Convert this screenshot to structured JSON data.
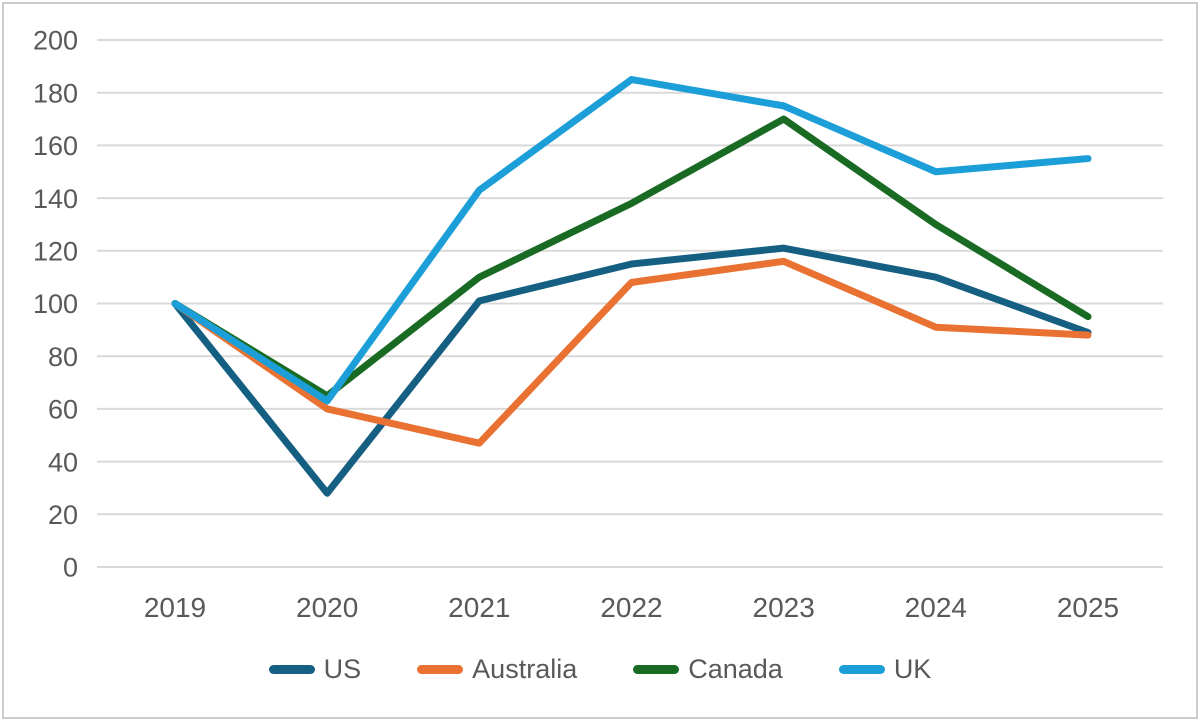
{
  "chart_data": {
    "type": "line",
    "title": "",
    "xlabel": "",
    "ylabel": "",
    "categories": [
      "2019",
      "2020",
      "2021",
      "2022",
      "2023",
      "2024",
      "2025"
    ],
    "series": [
      {
        "name": "US",
        "color": "#156082",
        "values": [
          100,
          28,
          101,
          115,
          121,
          110,
          89
        ]
      },
      {
        "name": "Australia",
        "color": "#E97132",
        "values": [
          100,
          60,
          47,
          108,
          116,
          91,
          88
        ]
      },
      {
        "name": "Canada",
        "color": "#196B24",
        "values": [
          100,
          65,
          110,
          138,
          170,
          130,
          95
        ]
      },
      {
        "name": "UK",
        "color": "#1C9FD8",
        "values": [
          100,
          63,
          143,
          185,
          175,
          150,
          155
        ]
      }
    ],
    "ylim": [
      0,
      200
    ],
    "ytick_step": 20,
    "grid": "horizontal-only",
    "legend_position": "bottom",
    "line_width": 7
  },
  "styles": {
    "background": "#FFFFFF",
    "frame_border_color": "#CCCCCC",
    "grid_color": "#D9D9D9",
    "axis_text_color": "#595959"
  }
}
